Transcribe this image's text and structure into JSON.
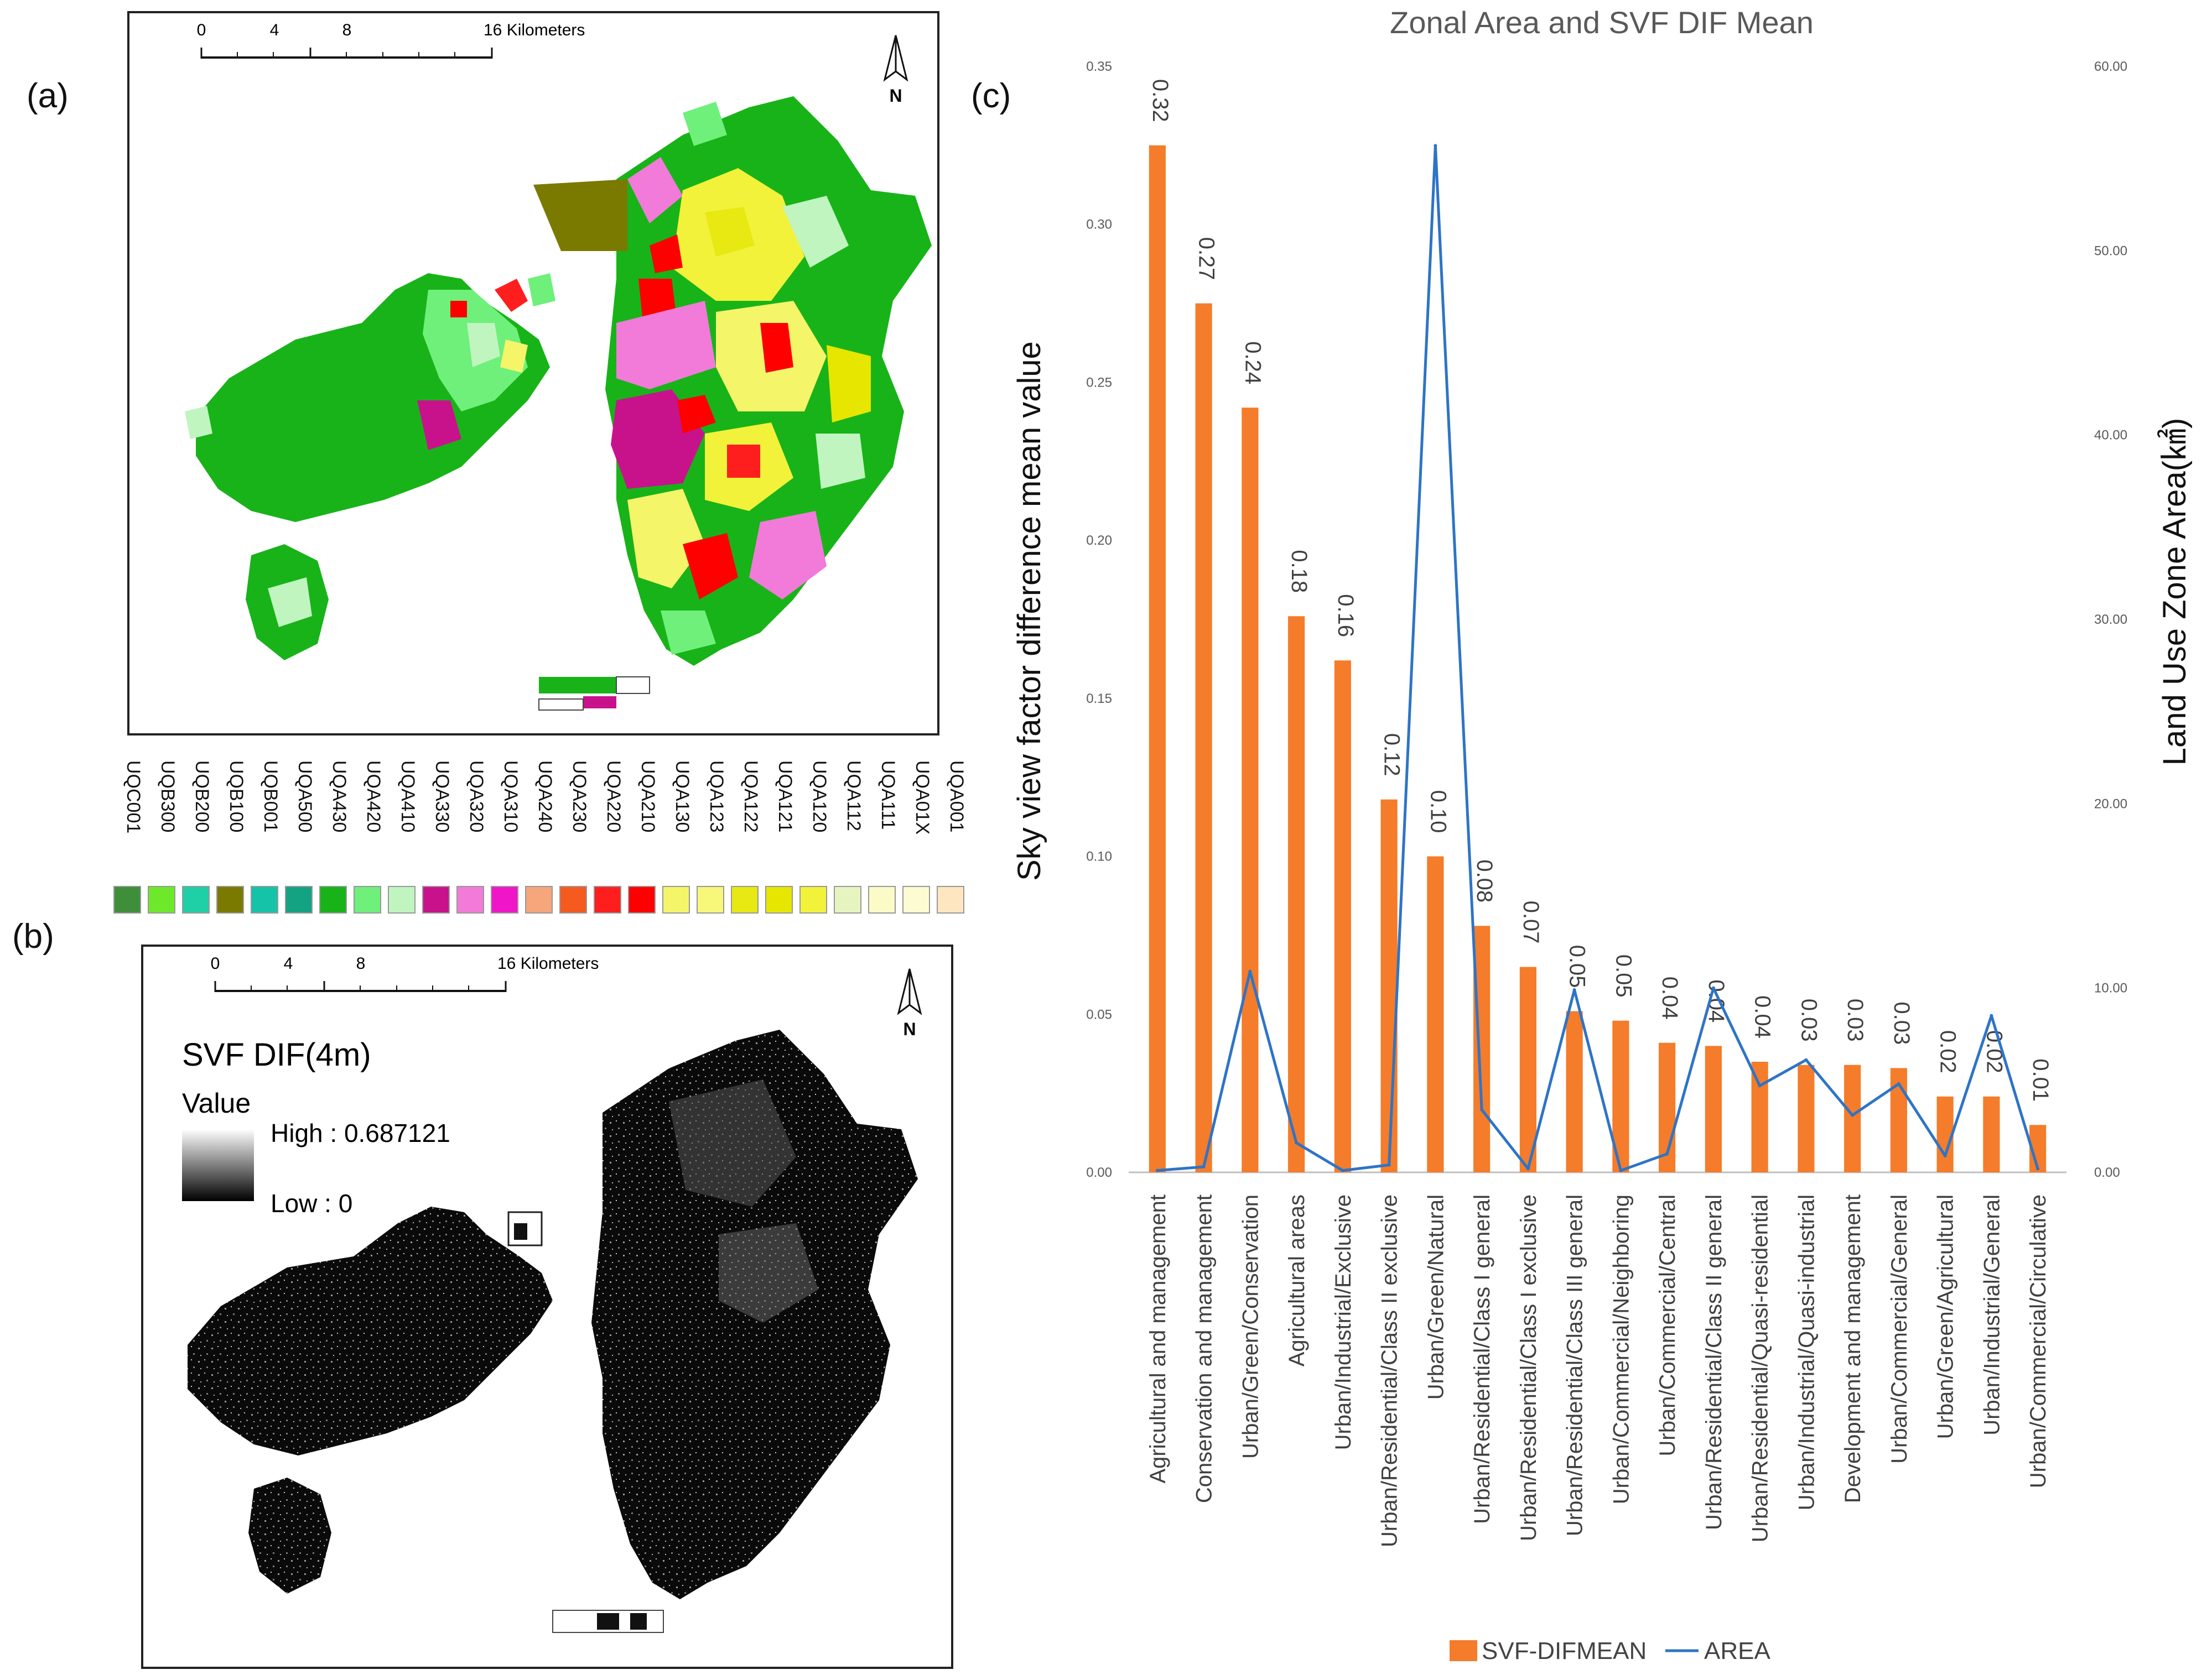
{
  "panels": {
    "a": "(a)",
    "b": "(b)",
    "c": "(c)"
  },
  "map_a": {
    "scale_ticks": [
      "0",
      "4",
      "8",
      "16 Kilometers"
    ],
    "north": "N",
    "legend": [
      {
        "code": "UQC001",
        "color": "#3f8f3a"
      },
      {
        "code": "UQB300",
        "color": "#6ee82a"
      },
      {
        "code": "UQB200",
        "color": "#1fcfa6"
      },
      {
        "code": "UQB100",
        "color": "#7a7a00"
      },
      {
        "code": "UQB001",
        "color": "#15c4a8"
      },
      {
        "code": "UQA500",
        "color": "#13a383"
      },
      {
        "code": "UQA430",
        "color": "#18b318"
      },
      {
        "code": "UQA420",
        "color": "#6ef07a"
      },
      {
        "code": "UQA410",
        "color": "#c0f5c0"
      },
      {
        "code": "UQA330",
        "color": "#c8128c"
      },
      {
        "code": "UQA320",
        "color": "#f27ad9"
      },
      {
        "code": "UQA310",
        "color": "#f016c8"
      },
      {
        "code": "UQA240",
        "color": "#f5a67a"
      },
      {
        "code": "UQA230",
        "color": "#f55a1e"
      },
      {
        "code": "UQA220",
        "color": "#ff1e1e"
      },
      {
        "code": "UQA210",
        "color": "#ff0000"
      },
      {
        "code": "UQA130",
        "color": "#f5f56a"
      },
      {
        "code": "UQA123",
        "color": "#f7f77a"
      },
      {
        "code": "UQA122",
        "color": "#e8e812"
      },
      {
        "code": "UQA121",
        "color": "#e6e600"
      },
      {
        "code": "UQA120",
        "color": "#f2f23a"
      },
      {
        "code": "UQA112",
        "color": "#e6f5c0"
      },
      {
        "code": "UQA111",
        "color": "#fbfbc8"
      },
      {
        "code": "UQA01X",
        "color": "#fdfbd2"
      },
      {
        "code": "UQA001",
        "color": "#fde6c0"
      }
    ]
  },
  "map_b": {
    "scale_ticks": [
      "0",
      "4",
      "8",
      "16 Kilometers"
    ],
    "north": "N",
    "title": "SVF DIF(4m)",
    "value_label": "Value",
    "high_label": "High : 0.687121",
    "low_label": "Low : 0"
  },
  "chart_data": {
    "type": "bar",
    "title": "Zonal Area and SVF DIF Mean",
    "ylabel": "Sky view factor difference mean value",
    "y2label": "Land Use Zone Area(㎢)",
    "ylim": [
      0,
      0.35
    ],
    "y2lim": [
      0,
      60
    ],
    "yticks": [
      "0.00",
      "0.05",
      "0.10",
      "0.15",
      "0.20",
      "0.25",
      "0.30",
      "0.35"
    ],
    "y2ticks": [
      "0.00",
      "10.00",
      "20.00",
      "30.00",
      "40.00",
      "50.00",
      "60.00"
    ],
    "categories": [
      "Agricultural and management",
      "Conservation and management",
      "Urban/Green/Conservation",
      "Agricultural areas",
      "Urban/Industrial/Exclusive",
      "Urban/Residential/Class II exclusive",
      "Urban/Green/Natural",
      "Urban/Residential/Class I general",
      "Urban/Residential/Class I exclusive",
      "Urban/Residential/Class III general",
      "Urban/Commercial/Neighboring",
      "Urban/Commercial/Central",
      "Urban/Residential/Class II general",
      "Urban/Residential/Quasi-residential",
      "Urban/Industrial/Quasi-industrial",
      "Development and management",
      "Urban/Commercial/General",
      "Urban/Green/Agricultural",
      "Urban/Industrial/General",
      "Urban/Commercial/Circulative"
    ],
    "series": [
      {
        "name": "SVF-DIFMEAN",
        "type": "bar",
        "axis": "left",
        "color": "#f47c2a",
        "values": [
          0.325,
          0.275,
          0.242,
          0.176,
          0.162,
          0.118,
          0.1,
          0.078,
          0.065,
          0.051,
          0.048,
          0.041,
          0.04,
          0.035,
          0.034,
          0.034,
          0.033,
          0.024,
          0.024,
          0.015
        ],
        "labels": [
          "0.32",
          "0.27",
          "0.24",
          "0.18",
          "0.16",
          "0.12",
          "0.10",
          "0.08",
          "0.07",
          "0.05",
          "0.05",
          "0.04",
          "0.04",
          "0.04",
          "0.03",
          "0.03",
          "0.03",
          "0.02",
          "0.02",
          "0.01"
        ]
      },
      {
        "name": "AREA",
        "type": "line",
        "axis": "right",
        "color": "#2e74c6",
        "values": [
          0.1,
          0.3,
          10.9,
          1.6,
          0.1,
          0.4,
          55.7,
          3.4,
          0.2,
          9.9,
          0.1,
          1.0,
          10.0,
          4.7,
          6.1,
          3.1,
          4.8,
          0.9,
          8.5,
          0.2
        ]
      }
    ],
    "legend": [
      "SVF-DIFMEAN",
      "AREA"
    ],
    "legend_position": "bottom"
  }
}
